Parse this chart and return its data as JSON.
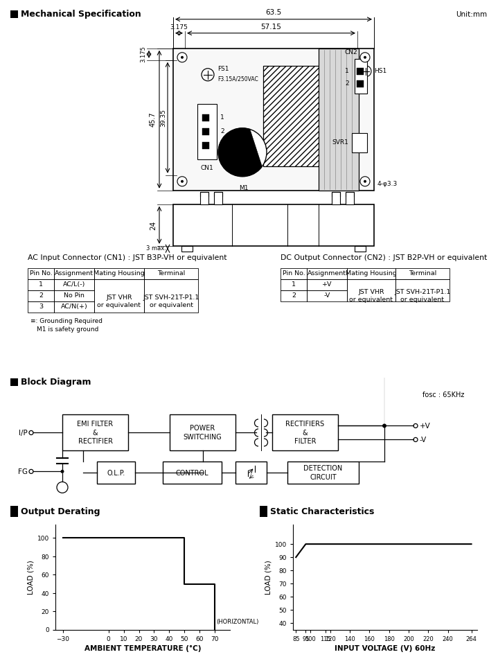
{
  "title_mech": "Mechanical Specification",
  "title_block": "Block Diagram",
  "title_derating": "Output Derating",
  "title_static": "Static Characteristics",
  "unit": "Unit:mm",
  "dim_63p5": "63.5",
  "dim_57p15": "57.15",
  "dim_3p175_h": "3.175",
  "dim_3p175_v": "3.175",
  "dim_45p7": "45.7",
  "dim_39p35": "39.35",
  "dim_24": "24",
  "dim_3max": "3 max.",
  "dim_4holes": "4-φ3.3",
  "label_FS1": "FS1",
  "label_fuse": "F3.15A/250VAC",
  "label_HS1": "HS1",
  "label_CN1": "CN1",
  "label_CN2": "CN2",
  "label_SVR1": "SVR1",
  "label_M1": "M1",
  "ac_title": "AC Input Connector (CN1) : JST B3P-VH or equivalent",
  "dc_title": "DC Output Connector (CN2) : JST B2P-VH or equivalent",
  "headers": [
    "Pin No.",
    "Assignment",
    "Mating Housing",
    "Terminal"
  ],
  "ac_pins": [
    "1",
    "2",
    "3"
  ],
  "ac_assignments": [
    "AC/L(-)",
    "No Pin",
    "AC/N(+)"
  ],
  "ac_mating": "JST VHR\nor equivalent",
  "ac_terminal": "JST SVH-21T-P1.1\nor equivalent",
  "dc_pins": [
    "1",
    "2"
  ],
  "dc_assignments": [
    "+V",
    "-V"
  ],
  "dc_mating": "JST VHR\nor equivalent",
  "dc_terminal": "JST SVH-21T-P1.1\nor equivalent",
  "ground_note1": "≡: Grounding Required",
  "ground_note2": "M1 is safety ground",
  "fosc": "fosc : 65KHz",
  "ip_label": "I/P",
  "fg_label": "FG",
  "vplus_label": "+V",
  "vminus_label": "-V",
  "derating_x": [
    -30,
    0,
    10,
    20,
    30,
    40,
    50,
    50,
    70,
    70
  ],
  "derating_y": [
    100,
    100,
    100,
    100,
    100,
    100,
    100,
    50,
    50,
    0
  ],
  "derating_xlabel": "AMBIENT TEMPERATURE (°C)",
  "derating_ylabel": "LOAD (%)",
  "derating_xlim": [
    -35,
    80
  ],
  "derating_ylim": [
    0,
    115
  ],
  "derating_xticks": [
    -30,
    0,
    10,
    20,
    30,
    40,
    50,
    60,
    70
  ],
  "derating_yticks": [
    0,
    20,
    40,
    60,
    80,
    100
  ],
  "derating_xlabel2": "(HORIZONTAL)",
  "static_x": [
    85,
    95,
    100,
    100,
    120,
    140,
    160,
    180,
    200,
    220,
    240,
    264
  ],
  "static_y": [
    90,
    100,
    100,
    100,
    100,
    100,
    100,
    100,
    100,
    100,
    100,
    100
  ],
  "static_xlabel": "INPUT VOLTAGE (V) 60Hz",
  "static_ylabel": "LOAD (%)",
  "static_xlim": [
    82,
    270
  ],
  "static_ylim": [
    35,
    115
  ],
  "static_xticks": [
    85,
    95,
    100,
    115,
    120,
    140,
    160,
    180,
    200,
    220,
    240,
    264
  ],
  "static_yticks": [
    40,
    50,
    60,
    70,
    80,
    90,
    100
  ],
  "bg_color": "#ffffff"
}
